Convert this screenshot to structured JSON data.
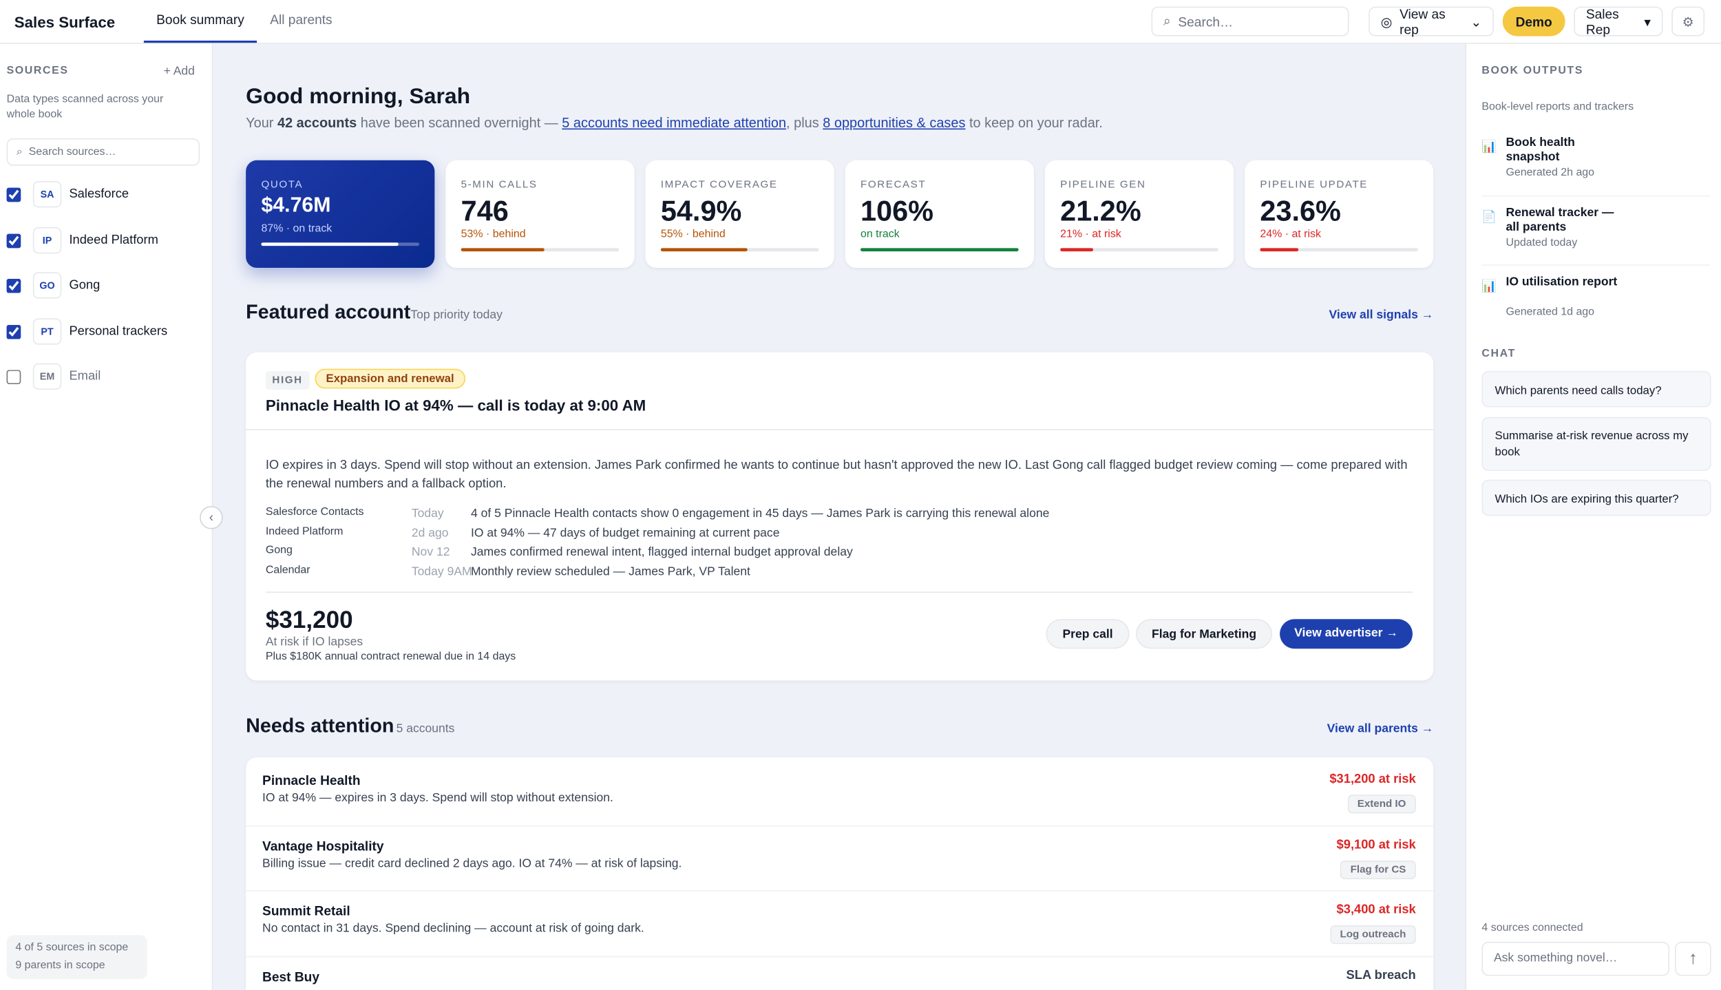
{
  "header": {
    "brand": "Sales Surface",
    "tabs": [
      "Book summary",
      "All parents"
    ],
    "search_placeholder": "Search…",
    "view_as": "View as rep",
    "demo": "Demo",
    "role": "Sales Rep"
  },
  "sources": {
    "title": "SOURCES",
    "add": "+ Add",
    "description": "Data types scanned across your whole book",
    "search_placeholder": "Search sources…",
    "items": [
      {
        "abbr": "SA",
        "name": "Salesforce",
        "checked": true
      },
      {
        "abbr": "IP",
        "name": "Indeed Platform",
        "checked": true
      },
      {
        "abbr": "GO",
        "name": "Gong",
        "checked": true
      },
      {
        "abbr": "PT",
        "name": "Personal trackers",
        "checked": true
      },
      {
        "abbr": "EM",
        "name": "Email",
        "checked": false
      }
    ],
    "footer": [
      "4 of 5 sources in scope",
      "9 parents in scope"
    ]
  },
  "main": {
    "greeting": "Good morning, Sarah",
    "summary": {
      "pre": "Your",
      "accounts": "42 accounts",
      "mid": "have been scanned overnight —",
      "link1": "5 accounts need immediate attention",
      "mid2": ", plus",
      "link2": "8 opportunities & cases",
      "post": "to keep on your radar."
    },
    "metrics": [
      {
        "label": "QUOTA",
        "value": "$4.76M",
        "status": "87% · on track"
      },
      {
        "label": "5-MIN CALLS",
        "value": "746",
        "status": "53% · behind"
      },
      {
        "label": "IMPACT COVERAGE",
        "value": "54.9%",
        "status": "55% · behind"
      },
      {
        "label": "FORECAST",
        "value": "106%",
        "status": "on track"
      },
      {
        "label": "PIPELINE GEN",
        "value": "21.2%",
        "status": "21% · at risk"
      },
      {
        "label": "PIPELINE UPDATE",
        "value": "23.6%",
        "status": "24% · at risk"
      }
    ],
    "featured": {
      "title": "Featured account",
      "subtitle": "Top priority today",
      "link": "View all signals →",
      "priority": "HIGH",
      "tag": "Expansion and renewal",
      "headline": "Pinnacle Health IO at 94% — call is today at 9:00 AM",
      "body": "IO expires in 3 days. Spend will stop without an extension. James Park confirmed he wants to continue but hasn't approved the new IO. Last Gong call flagged budget review coming — come prepared with the renewal numbers and a fallback option.",
      "signals": [
        {
          "source": "Salesforce Contacts",
          "when": "Today",
          "text": "4 of 5 Pinnacle Health contacts show 0 engagement in 45 days — James Park is carrying this renewal alone"
        },
        {
          "source": "Indeed Platform",
          "when": "2d ago",
          "text": "IO at 94% — 47 days of budget remaining at current pace"
        },
        {
          "source": "Gong",
          "when": "Nov 12",
          "text": "James confirmed renewal intent, flagged internal budget approval delay"
        },
        {
          "source": "Calendar",
          "when": "Today 9AM",
          "text": "Monthly review scheduled — James Park, VP Talent"
        }
      ],
      "amount": "$31,200",
      "amount_label": "At risk if IO lapses",
      "note": "Plus $180K annual contract renewal due in 14 days",
      "actions": [
        "Prep call",
        "Flag for Marketing",
        "View advertiser →"
      ]
    },
    "attention": {
      "title": "Needs attention",
      "count": "5 accounts",
      "link": "View all parents →",
      "items": [
        {
          "name": "Pinnacle Health",
          "desc": "IO at 94% — expires in 3 days. Spend will stop without extension.",
          "amount": "$31,200 at risk",
          "action": "Extend IO"
        },
        {
          "name": "Vantage Hospitality",
          "desc": "Billing issue — credit card declined 2 days ago. IO at 74% — at risk of lapsing.",
          "amount": "$9,100 at risk",
          "action": "Flag for CS"
        },
        {
          "name": "Summit Retail",
          "desc": "No contact in 31 days. Spend declining — account at risk of going dark.",
          "amount": "$3,400 at risk",
          "action": "Log outreach"
        },
        {
          "name": "Best Buy",
          "amount": "SLA breach"
        }
      ]
    }
  },
  "outputs": {
    "title": "BOOK OUTPUTS",
    "subtitle": "Book-level reports and trackers",
    "items": [
      {
        "title": "Book health snapshot",
        "meta": "Generated 2h ago"
      },
      {
        "title": "Renewal tracker — all parents",
        "meta": "Updated today"
      },
      {
        "title": "IO utilisation report",
        "meta": "Generated 1d ago"
      }
    ]
  },
  "chat": {
    "title": "CHAT",
    "suggestions": [
      "Which parents need calls today?",
      "Summarise at-risk revenue across my book",
      "Which IOs are expiring this quarter?"
    ],
    "connected": "4 sources connected",
    "placeholder": "Ask something novel…"
  }
}
